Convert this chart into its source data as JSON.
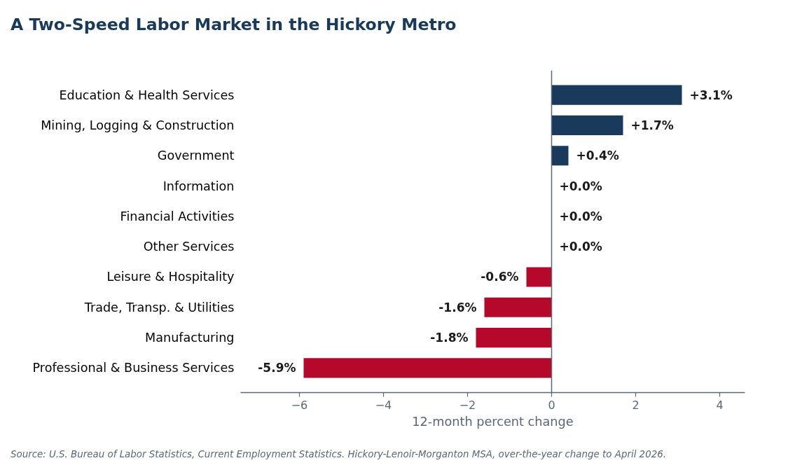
{
  "chart_data": {
    "type": "bar",
    "orientation": "horizontal",
    "title": "A Two-Speed Labor Market in the Hickory Metro",
    "xlabel": "12-month percent change",
    "categories": [
      "Education & Health Services",
      "Mining, Logging & Construction",
      "Government",
      "Information",
      "Financial Activities",
      "Other Services",
      "Leisure & Hospitality",
      "Trade, Transp. & Utilities",
      "Manufacturing",
      "Professional & Business Services"
    ],
    "values": [
      3.1,
      1.7,
      0.4,
      0.0,
      0.0,
      0.0,
      -0.6,
      -1.6,
      -1.8,
      -5.9
    ],
    "colors": [
      "#1a3a5c",
      "#1a3a5c",
      "#1a3a5c",
      "#1a3a5c",
      "#1a3a5c",
      "#1a3a5c",
      "#b5082a",
      "#b5082a",
      "#b5082a",
      "#b5082a"
    ],
    "value_labels": [
      "+3.1%",
      "+1.7%",
      "+0.4%",
      "+0.0%",
      "+0.0%",
      "+0.0%",
      "-0.6%",
      "-1.6%",
      "-1.8%",
      "-5.9%"
    ],
    "xlim": [
      -7.4,
      4.6
    ],
    "xticks": [
      {
        "value": -6,
        "label": "−6"
      },
      {
        "value": -4,
        "label": "−4"
      },
      {
        "value": -2,
        "label": "−2"
      },
      0,
      2,
      4
    ],
    "ref_lines": [
      {
        "axis": "x",
        "value": 0,
        "color": "#5b6678"
      }
    ],
    "annotations": [
      "Source: U.S. Bureau of Labor Statistics, Current Employment Statistics. Hickory-Lenoir-Morganton MSA, over-the-year change to April 2026."
    ]
  }
}
